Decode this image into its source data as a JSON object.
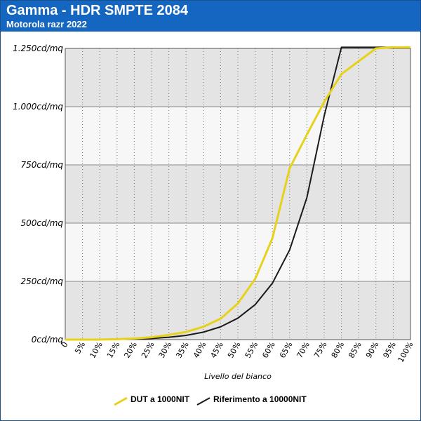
{
  "header": {
    "title": "Gamma - HDR SMPTE 2084",
    "subtitle": "Motorola razr 2022"
  },
  "colors": {
    "header_bg": "#1566c0",
    "band_dark": "#e4e4e4",
    "band_light": "#f7f7f7",
    "dut": "#e6d21a",
    "reference": "#1a1a1a"
  },
  "chart_data": {
    "type": "line",
    "xlabel": "Livello del bianco",
    "ylabel": "",
    "x_ticks": [
      "0",
      "5%",
      "10%",
      "15%",
      "20%",
      "25%",
      "30%",
      "35%",
      "40%",
      "45%",
      "50%",
      "55%",
      "60%",
      "65%",
      "70%",
      "75%",
      "80%",
      "85%",
      "90%",
      "95%",
      "100%"
    ],
    "y_ticks": [
      "0cd/mq",
      "250cd/mq",
      "500cd/mq",
      "750cd/mq",
      "1.000cd/mq",
      "1.250cd/mq"
    ],
    "ylim": [
      0,
      1250
    ],
    "xlim": [
      0,
      100
    ],
    "grid": true,
    "legend_position": "bottom",
    "x": [
      0,
      5,
      10,
      15,
      20,
      25,
      30,
      35,
      40,
      45,
      50,
      55,
      60,
      65,
      70,
      75,
      80,
      85,
      90,
      95,
      100
    ],
    "series": [
      {
        "name": "DUT a 1000NIT",
        "color": "#e6d21a",
        "values": [
          0,
          0,
          0,
          2,
          5,
          10,
          20,
          33,
          55,
          90,
          155,
          260,
          435,
          735,
          880,
          1020,
          1140,
          1195,
          1250,
          1255,
          1255
        ]
      },
      {
        "name": "Riferimento a 10000NIT",
        "color": "#1a1a1a",
        "values": [
          0,
          0,
          0,
          1,
          3,
          5,
          10,
          18,
          32,
          55,
          92,
          150,
          242,
          385,
          610,
          960,
          1255,
          1255,
          1255,
          1255,
          1255
        ]
      }
    ]
  }
}
